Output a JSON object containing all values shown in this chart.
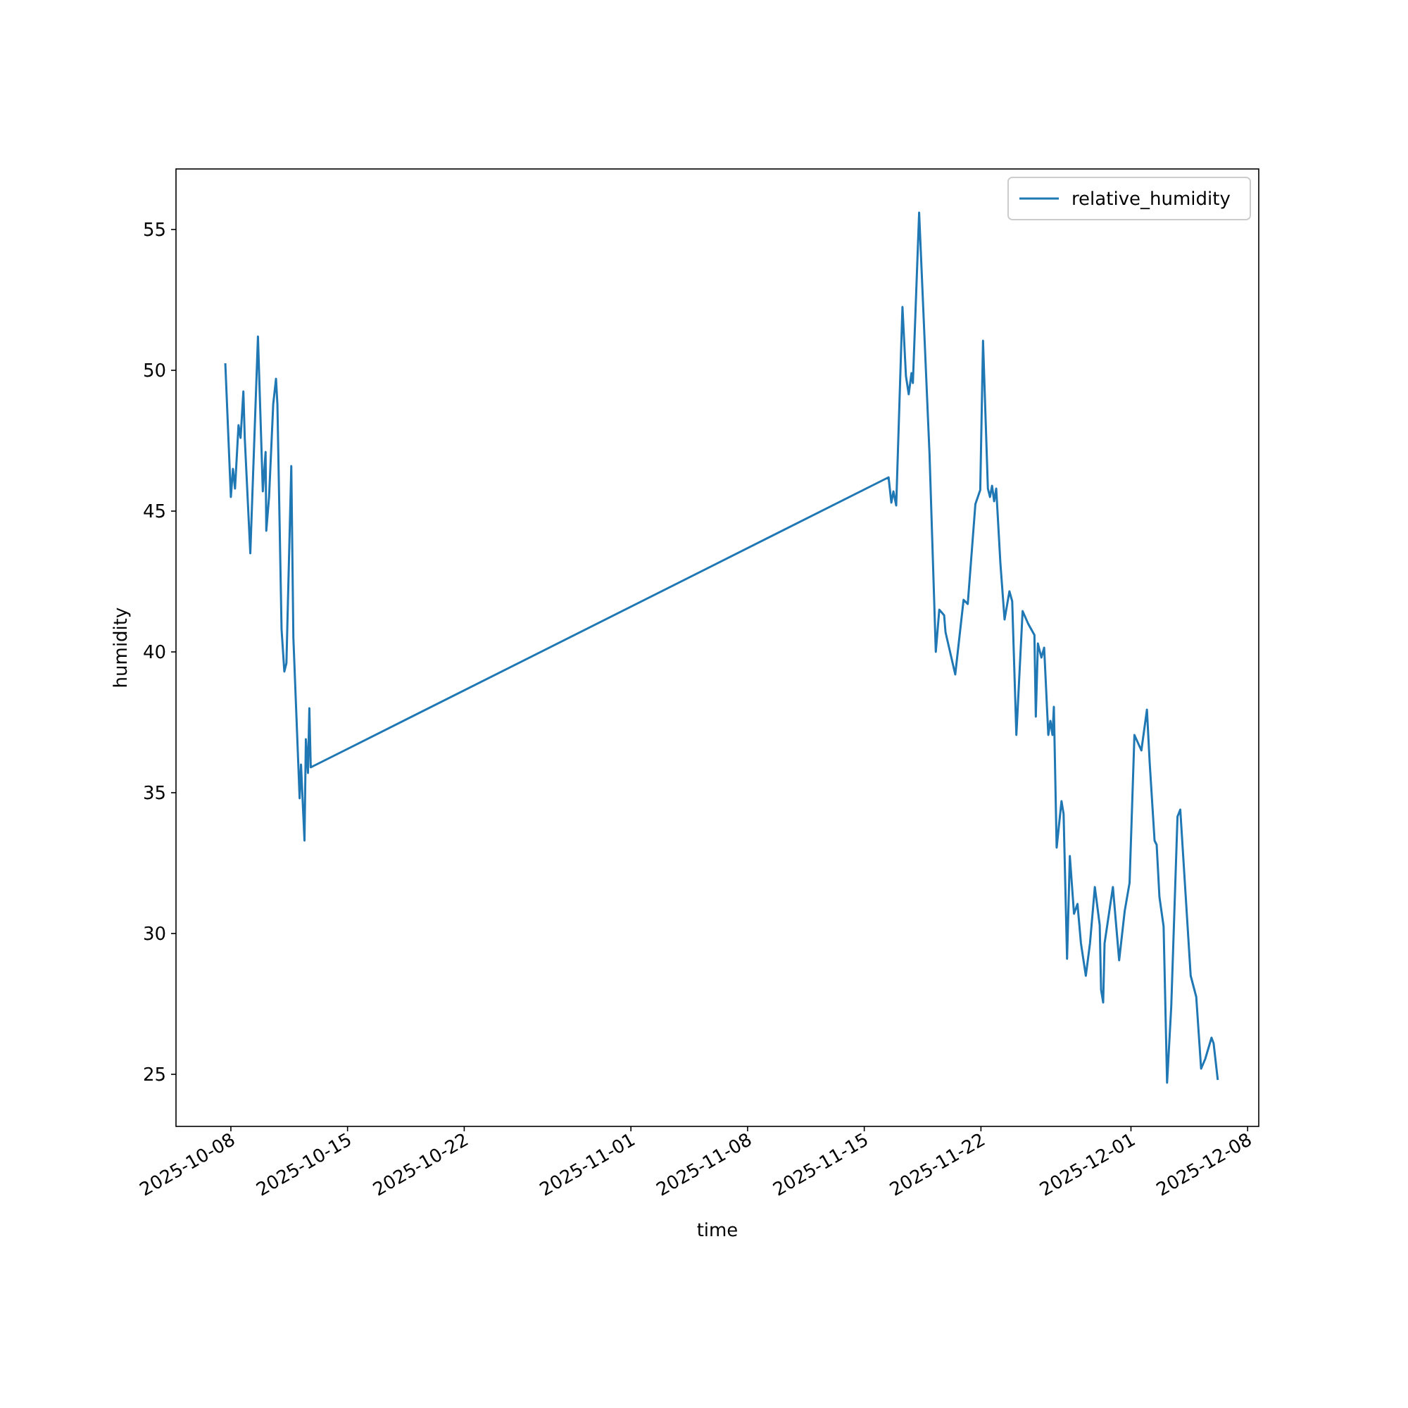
{
  "chart_data": {
    "type": "line",
    "xlabel": "time",
    "ylabel": "humidity",
    "legend": "top right",
    "grid": false,
    "xlim": [
      "2025-10-04T17:00",
      "2025-12-08T16:00"
    ],
    "ylim": [
      23.15,
      57.15
    ],
    "xticks": [
      "2025-10-08",
      "2025-10-15",
      "2025-10-22",
      "2025-11-01",
      "2025-11-08",
      "2025-11-15",
      "2025-11-22",
      "2025-12-01",
      "2025-12-08"
    ],
    "yticks": [
      25,
      30,
      35,
      40,
      45,
      50,
      55
    ],
    "x": [
      "2025-10-07T16:00",
      "2025-10-08T00:00",
      "2025-10-08T03:00",
      "2025-10-08T06:00",
      "2025-10-08T11:00",
      "2025-10-08T14:00",
      "2025-10-08T18:00",
      "2025-10-08T20:00",
      "2025-10-09T04:00",
      "2025-10-09T15:00",
      "2025-10-09T22:00",
      "2025-10-10T02:00",
      "2025-10-10T03:00",
      "2025-10-10T07:00",
      "2025-10-10T13:00",
      "2025-10-10T17:00",
      "2025-10-10T19:00",
      "2025-10-11T01:00",
      "2025-10-11T05:00",
      "2025-10-11T08:00",
      "2025-10-11T15:00",
      "2025-10-11T18:00",
      "2025-10-12T03:00",
      "2025-10-12T05:00",
      "2025-10-12T10:00",
      "2025-10-12T12:00",
      "2025-10-12T15:00",
      "2025-10-12T17:00",
      "2025-10-12T19:00",
      "2025-11-16T11:00",
      "2025-11-16T15:00",
      "2025-11-16T18:00",
      "2025-11-16T22:00",
      "2025-11-17T07:00",
      "2025-11-17T12:00",
      "2025-11-17T16:00",
      "2025-11-17T20:00",
      "2025-11-17T22:00",
      "2025-11-18T07:00",
      "2025-11-18T22:00",
      "2025-11-19T07:00",
      "2025-11-19T12:00",
      "2025-11-19T19:00",
      "2025-11-19T21:00",
      "2025-11-20T11:00",
      "2025-11-20T23:00",
      "2025-11-21T05:00",
      "2025-11-21T16:00",
      "2025-11-21T23:00",
      "2025-11-22T03:00",
      "2025-11-22T10:00",
      "2025-11-22T13:00",
      "2025-11-22T16:00",
      "2025-11-22T19:00",
      "2025-11-22T22:00",
      "2025-11-23T04:00",
      "2025-11-23T10:00",
      "2025-11-23T17:00",
      "2025-11-23T21:00",
      "2025-11-24T03:00",
      "2025-11-24T12:00",
      "2025-11-24T20:00",
      "2025-11-25T05:00",
      "2025-11-25T07:00",
      "2025-11-25T10:00",
      "2025-11-25T15:00",
      "2025-11-25T19:00",
      "2025-11-26T01:00",
      "2025-11-26T04:00",
      "2025-11-26T07:00",
      "2025-11-26T09:00",
      "2025-11-26T13:00",
      "2025-11-26T20:00",
      "2025-11-26T23:00",
      "2025-11-27T04:00",
      "2025-11-27T08:00",
      "2025-11-27T14:00",
      "2025-11-27T19:00",
      "2025-11-28T00:00",
      "2025-11-28T07:00",
      "2025-11-28T13:00",
      "2025-11-28T20:00",
      "2025-11-29T03:00",
      "2025-11-29T05:00",
      "2025-11-29T08:00",
      "2025-11-29T10:00",
      "2025-11-29T16:00",
      "2025-11-29T22:00",
      "2025-11-30T07:00",
      "2025-11-30T15:00",
      "2025-11-30T22:00",
      "2025-12-01T05:00",
      "2025-12-01T15:00",
      "2025-12-01T23:00",
      "2025-12-02T03:00",
      "2025-12-02T10:00",
      "2025-12-02T13:00",
      "2025-12-02T17:00",
      "2025-12-02T23:00",
      "2025-12-03T04:00",
      "2025-12-03T10:00",
      "2025-12-03T19:00",
      "2025-12-03T23:00",
      "2025-12-04T14:00",
      "2025-12-04T22:00",
      "2025-12-05T05:00",
      "2025-12-05T11:00",
      "2025-12-05T20:00",
      "2025-12-05T23:00",
      "2025-12-06T05:00"
    ],
    "series": [
      {
        "name": "relative_humidity",
        "color": "#1f77b4",
        "values": [
          50.25,
          45.5,
          46.5,
          45.8,
          48.05,
          47.6,
          49.25,
          47.6,
          43.5,
          51.2,
          45.7,
          47.1,
          44.3,
          45.5,
          48.8,
          49.7,
          48.8,
          40.8,
          39.3,
          39.6,
          46.6,
          40.5,
          34.8,
          36.0,
          33.3,
          36.9,
          35.7,
          38.0,
          35.9,
          46.2,
          45.3,
          45.7,
          45.2,
          52.25,
          49.8,
          49.15,
          49.9,
          49.55,
          55.6,
          47.0,
          40.0,
          41.5,
          41.3,
          40.7,
          39.2,
          41.85,
          41.7,
          45.25,
          45.75,
          51.05,
          45.8,
          45.5,
          45.9,
          45.35,
          45.8,
          43.15,
          41.15,
          42.15,
          41.8,
          37.05,
          41.45,
          41.0,
          40.6,
          37.7,
          40.3,
          39.8,
          40.15,
          37.05,
          37.55,
          37.05,
          38.05,
          33.05,
          34.7,
          34.25,
          29.1,
          32.75,
          30.7,
          31.05,
          29.65,
          28.5,
          29.65,
          31.65,
          30.3,
          28.0,
          27.55,
          29.65,
          30.65,
          31.65,
          29.05,
          30.8,
          31.8,
          37.05,
          36.5,
          37.95,
          36.05,
          33.3,
          33.15,
          31.3,
          30.25,
          24.7,
          27.4,
          34.15,
          34.4,
          28.5,
          27.75,
          25.2,
          25.55,
          26.3,
          26.1,
          24.8
        ]
      }
    ]
  }
}
